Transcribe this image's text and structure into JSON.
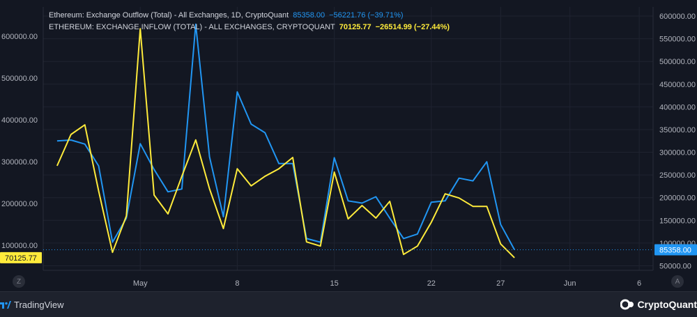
{
  "legend": {
    "outflow": {
      "name": "Ethereum: Exchange Outflow (Total) - All Exchanges, 1D, CryptoQuant",
      "value": "85358.00",
      "change": "−56221.76 (−39.71%)"
    },
    "inflow": {
      "name": "ETHEREUM: EXCHANGE INFLOW (TOTAL) - ALL EXCHANGES, CRYPTOQUANT",
      "value": "70125.77",
      "change": "−26514.99 (−27.44%)"
    }
  },
  "footer": {
    "left_logo": "TradingView",
    "right_logo": "CryptoQuant",
    "zoom_button": "Z",
    "auto_button": "A"
  },
  "colors": {
    "background": "#131722",
    "outflow": "#2196f3",
    "inflow": "#ffeb3b",
    "grid": "#1f2330",
    "axis_text": "#b2b5be"
  },
  "chart_data": {
    "type": "line",
    "x_labels": [
      {
        "label": "May",
        "day": "May 1"
      },
      {
        "label": "8",
        "day": "May 8"
      },
      {
        "label": "15",
        "day": "May 15"
      },
      {
        "label": "22",
        "day": "May 22"
      },
      {
        "label": "27",
        "day": "May 27"
      },
      {
        "label": "Jun",
        "day": "Jun 1"
      },
      {
        "label": "6",
        "day": "Jun 6"
      }
    ],
    "x_range": [
      "Apr 24",
      "Jun 7"
    ],
    "left_axis": {
      "ticks": [
        "100000.00",
        "200000.00",
        "300000.00",
        "400000.00",
        "500000.00",
        "600000.00"
      ],
      "tick_values": [
        100000,
        200000,
        300000,
        400000,
        500000,
        600000
      ],
      "range": [
        40000,
        670000
      ],
      "current_label": "70125.77",
      "current_value": 70125.77
    },
    "right_axis": {
      "ticks": [
        "50000.00",
        "100000.00",
        "150000.00",
        "200000.00",
        "250000.00",
        "300000.00",
        "350000.00",
        "400000.00",
        "450000.00",
        "500000.00",
        "550000.00",
        "600000.00"
      ],
      "tick_values": [
        50000,
        100000,
        150000,
        200000,
        250000,
        300000,
        350000,
        400000,
        450000,
        500000,
        550000,
        600000
      ],
      "range": [
        40000,
        620000
      ],
      "current_label": "85358.00",
      "current_value": 85358
    },
    "series": [
      {
        "name": "Ethereum: Exchange Outflow (Total) - All Exchanges, 1D, CryptoQuant",
        "axis": "right",
        "x": [
          "Apr 25",
          "Apr 26",
          "Apr 27",
          "Apr 28",
          "Apr 29",
          "Apr 30",
          "May 1",
          "May 2",
          "May 3",
          "May 4",
          "May 5",
          "May 6",
          "May 7",
          "May 8",
          "May 9",
          "May 10",
          "May 11",
          "May 12",
          "May 13",
          "May 14",
          "May 15",
          "May 16",
          "May 17",
          "May 18",
          "May 19",
          "May 20",
          "May 21",
          "May 22",
          "May 23",
          "May 24",
          "May 25",
          "May 26",
          "May 27",
          "May 28"
        ],
        "values": [
          325000,
          327000,
          318000,
          270000,
          102000,
          155000,
          319000,
          262000,
          213000,
          219000,
          582000,
          290000,
          158000,
          433000,
          362000,
          343000,
          275000,
          275000,
          110000,
          102000,
          288000,
          193000,
          188000,
          202000,
          155000,
          110000,
          120000,
          190000,
          193000,
          243000,
          237000,
          279000,
          141000,
          85358
        ]
      },
      {
        "name": "ETHEREUM: EXCHANGE INFLOW (TOTAL) - ALL EXCHANGES, CRYPTOQUANT",
        "axis": "left",
        "x": [
          "Apr 25",
          "Apr 26",
          "Apr 27",
          "Apr 28",
          "Apr 29",
          "Apr 30",
          "May 1",
          "May 2",
          "May 3",
          "May 4",
          "May 5",
          "May 6",
          "May 7",
          "May 8",
          "May 9",
          "May 10",
          "May 11",
          "May 12",
          "May 13",
          "May 14",
          "May 15",
          "May 16",
          "May 17",
          "May 18",
          "May 19",
          "May 20",
          "May 21",
          "May 22",
          "May 23",
          "May 24",
          "May 25",
          "May 26",
          "May 27",
          "May 28"
        ],
        "values": [
          290000,
          365000,
          388000,
          230000,
          83000,
          170000,
          618000,
          220000,
          175000,
          265000,
          352000,
          235000,
          140000,
          283000,
          242000,
          265000,
          283000,
          310000,
          108000,
          98000,
          275000,
          163000,
          195000,
          165000,
          205000,
          78000,
          98000,
          155000,
          223000,
          213000,
          193000,
          193000,
          103000,
          70125.77
        ]
      }
    ],
    "grid": true,
    "legend_position": "top-left"
  }
}
